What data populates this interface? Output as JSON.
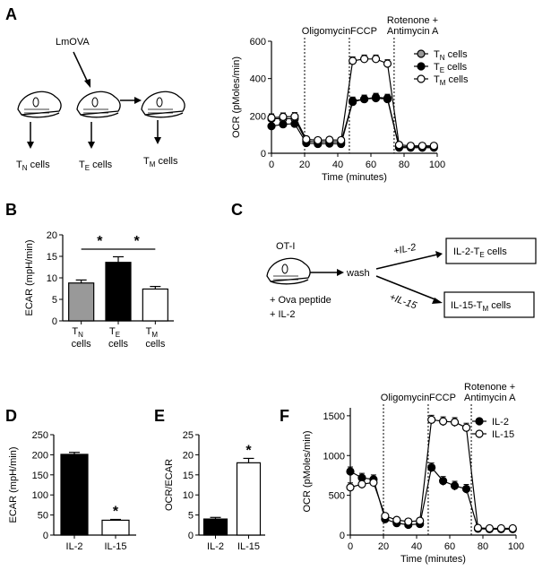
{
  "panels": {
    "A": {
      "label": "A",
      "lmova": "LmOVA",
      "tn": "T",
      "tn_sub": "N",
      "te": "T",
      "te_sub": "E",
      "tm": "T",
      "tm_sub": "M",
      "cells": " cells"
    },
    "B": {
      "label": "B"
    },
    "C": {
      "label": "C",
      "oti": "OT-I",
      "ova": "+ Ova peptide",
      "il2": "+ IL-2",
      "wash": "wash",
      "arrow_il2": "+IL-2",
      "arrow_il15": "+IL-15",
      "box1": "IL-2-T",
      "box1_sub": "E",
      "box1_end": " cells",
      "box2": "IL-15-T",
      "box2_sub": "M",
      "box2_end": " cells"
    },
    "D": {
      "label": "D"
    },
    "E": {
      "label": "E"
    },
    "F": {
      "label": "F"
    }
  },
  "chart_data": [
    {
      "id": "A-ocr",
      "type": "line",
      "ylabel": "OCR (pMoles/min)",
      "xlabel": "Time (minutes)",
      "xlim": [
        0,
        100
      ],
      "ylim": [
        0,
        600
      ],
      "xticks": [
        0,
        20,
        40,
        60,
        80,
        100
      ],
      "yticks": [
        0,
        200,
        400,
        600
      ],
      "injections": [
        {
          "x": 20,
          "label": [
            "Oligomycin"
          ]
        },
        {
          "x": 47,
          "label": [
            "FCCP"
          ]
        },
        {
          "x": 74,
          "label": [
            "Rotenone +",
            "Antimycin A"
          ]
        }
      ],
      "x": [
        0,
        7,
        14,
        21,
        28,
        35,
        42,
        49,
        56,
        63,
        70,
        77,
        84,
        91,
        98
      ],
      "series": [
        {
          "name": "T",
          "sub": "N",
          "suffix": " cells",
          "fill": "#999999",
          "values": [
            185,
            185,
            185,
            65,
            60,
            62,
            60,
            280,
            290,
            295,
            290,
            30,
            30,
            30,
            30
          ]
        },
        {
          "name": "T",
          "sub": "E",
          "suffix": " cells",
          "fill": "#000000",
          "values": [
            145,
            155,
            158,
            55,
            50,
            52,
            50,
            275,
            290,
            300,
            295,
            35,
            35,
            35,
            35
          ]
        },
        {
          "name": "T",
          "sub": "M",
          "suffix": " cells",
          "fill": "#ffffff",
          "values": [
            190,
            195,
            197,
            75,
            70,
            72,
            70,
            495,
            505,
            505,
            480,
            45,
            40,
            40,
            40
          ]
        }
      ],
      "legend_position": "top-right"
    },
    {
      "id": "B-ecar",
      "type": "bar",
      "ylabel": "ECAR (mpH/min)",
      "ylim": [
        0,
        20
      ],
      "yticks": [
        0,
        5,
        10,
        15,
        20
      ],
      "categories": [
        {
          "main": "T",
          "sub": "N",
          "line2": "cells"
        },
        {
          "main": "T",
          "sub": "E",
          "line2": "cells"
        },
        {
          "main": "T",
          "sub": "M",
          "line2": "cells"
        }
      ],
      "values": [
        8.8,
        13.6,
        7.4
      ],
      "errors": [
        0.7,
        1.3,
        0.6
      ],
      "fills": [
        "#999999",
        "#000000",
        "#ffffff"
      ],
      "significance": [
        "*",
        "*"
      ]
    },
    {
      "id": "D-ecar",
      "type": "bar",
      "ylabel": "ECAR (mpH/min)",
      "ylim": [
        0,
        250
      ],
      "yticks": [
        0,
        50,
        100,
        150,
        200,
        250
      ],
      "categories": [
        "IL-2",
        "IL-15"
      ],
      "values": [
        201,
        37
      ],
      "errors": [
        5,
        2
      ],
      "fills": [
        "#000000",
        "#ffffff"
      ],
      "significance": "*"
    },
    {
      "id": "E-ratio",
      "type": "bar",
      "ylabel": "OCR/ECAR",
      "ylim": [
        0,
        25
      ],
      "yticks": [
        0,
        5,
        10,
        15,
        20,
        25
      ],
      "categories": [
        "IL-2",
        "IL-15"
      ],
      "values": [
        4.0,
        18.0
      ],
      "errors": [
        0.4,
        1.1
      ],
      "fills": [
        "#000000",
        "#ffffff"
      ],
      "significance": "*"
    },
    {
      "id": "F-ocr",
      "type": "line",
      "ylabel": "OCR (pMoles/min)",
      "xlabel": "Time (minutes)",
      "xlim": [
        0,
        100
      ],
      "ylim": [
        0,
        1600
      ],
      "xticks": [
        0,
        20,
        40,
        60,
        80,
        100
      ],
      "yticks": [
        0,
        500,
        1000,
        1500
      ],
      "injections": [
        {
          "x": 20,
          "label": [
            "Oligomycin"
          ]
        },
        {
          "x": 47,
          "label": [
            "FCCP"
          ]
        },
        {
          "x": 73,
          "label": [
            "Rotenone +",
            "Antimycin A"
          ]
        }
      ],
      "x": [
        0,
        7,
        14,
        21,
        28,
        35,
        42,
        49,
        56,
        63,
        70,
        77,
        84,
        91,
        98
      ],
      "series": [
        {
          "name": "IL-2",
          "fill": "#000000",
          "values": [
            800,
            720,
            700,
            200,
            150,
            130,
            140,
            850,
            680,
            620,
            580,
            80,
            75,
            75,
            75
          ]
        },
        {
          "name": "IL-15",
          "fill": "#ffffff",
          "values": [
            600,
            640,
            660,
            240,
            190,
            170,
            180,
            1450,
            1430,
            1420,
            1350,
            90,
            85,
            85,
            85
          ]
        }
      ],
      "legend_position": "top-right"
    }
  ]
}
